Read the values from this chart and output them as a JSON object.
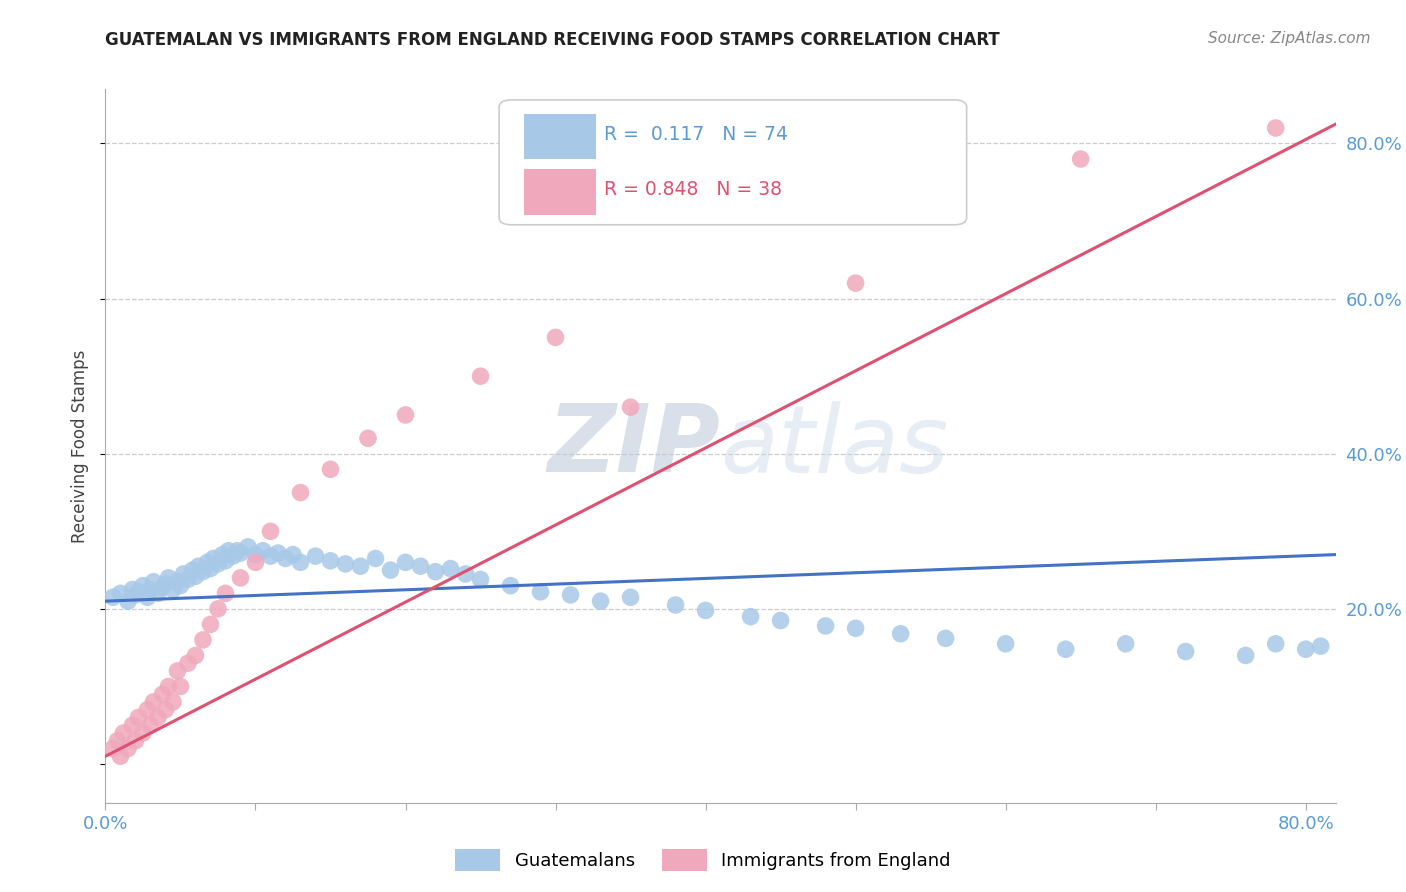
{
  "title": "GUATEMALAN VS IMMIGRANTS FROM ENGLAND RECEIVING FOOD STAMPS CORRELATION CHART",
  "source_text": "Source: ZipAtlas.com",
  "ylabel": "Receiving Food Stamps",
  "xlim": [
    0.0,
    0.82
  ],
  "ylim": [
    -0.05,
    0.87
  ],
  "xticks": [
    0.0,
    0.1,
    0.2,
    0.3,
    0.4,
    0.5,
    0.6,
    0.7,
    0.8
  ],
  "yticks_right": [
    0.2,
    0.4,
    0.6,
    0.8
  ],
  "ytick_labels_right": [
    "20.0%",
    "40.0%",
    "60.0%",
    "80.0%"
  ],
  "R_blue": 0.117,
  "N_blue": 74,
  "R_pink": 0.848,
  "N_pink": 38,
  "blue_color": "#A8C8E8",
  "pink_color": "#F0A8BC",
  "blue_line_color": "#4472C4",
  "pink_line_color": "#E05070",
  "watermark_color": "#C8D8E8",
  "background_color": "#FFFFFF",
  "grid_color": "#CCCCCC",
  "blue_scatter_x": [
    0.005,
    0.01,
    0.015,
    0.018,
    0.02,
    0.022,
    0.025,
    0.028,
    0.03,
    0.032,
    0.035,
    0.038,
    0.04,
    0.042,
    0.045,
    0.048,
    0.05,
    0.052,
    0.055,
    0.058,
    0.06,
    0.062,
    0.065,
    0.068,
    0.07,
    0.072,
    0.075,
    0.078,
    0.08,
    0.082,
    0.085,
    0.088,
    0.09,
    0.095,
    0.1,
    0.105,
    0.11,
    0.115,
    0.12,
    0.125,
    0.13,
    0.14,
    0.15,
    0.16,
    0.17,
    0.18,
    0.19,
    0.2,
    0.21,
    0.22,
    0.23,
    0.24,
    0.25,
    0.27,
    0.29,
    0.31,
    0.33,
    0.35,
    0.38,
    0.4,
    0.43,
    0.45,
    0.48,
    0.5,
    0.53,
    0.56,
    0.6,
    0.64,
    0.68,
    0.72,
    0.76,
    0.78,
    0.8,
    0.81
  ],
  "blue_scatter_y": [
    0.215,
    0.22,
    0.21,
    0.225,
    0.218,
    0.222,
    0.23,
    0.215,
    0.225,
    0.235,
    0.22,
    0.228,
    0.232,
    0.24,
    0.225,
    0.235,
    0.23,
    0.245,
    0.238,
    0.25,
    0.242,
    0.255,
    0.248,
    0.26,
    0.252,
    0.265,
    0.258,
    0.27,
    0.262,
    0.275,
    0.268,
    0.275,
    0.272,
    0.28,
    0.27,
    0.275,
    0.268,
    0.272,
    0.265,
    0.27,
    0.26,
    0.268,
    0.262,
    0.258,
    0.255,
    0.265,
    0.25,
    0.26,
    0.255,
    0.248,
    0.252,
    0.245,
    0.238,
    0.23,
    0.222,
    0.218,
    0.21,
    0.215,
    0.205,
    0.198,
    0.19,
    0.185,
    0.178,
    0.175,
    0.168,
    0.162,
    0.155,
    0.148,
    0.155,
    0.145,
    0.14,
    0.155,
    0.148,
    0.152
  ],
  "pink_scatter_x": [
    0.005,
    0.008,
    0.01,
    0.012,
    0.015,
    0.018,
    0.02,
    0.022,
    0.025,
    0.028,
    0.03,
    0.032,
    0.035,
    0.038,
    0.04,
    0.042,
    0.045,
    0.048,
    0.05,
    0.055,
    0.06,
    0.065,
    0.07,
    0.075,
    0.08,
    0.09,
    0.1,
    0.11,
    0.13,
    0.15,
    0.175,
    0.2,
    0.25,
    0.3,
    0.35,
    0.5,
    0.65,
    0.78
  ],
  "pink_scatter_y": [
    0.02,
    0.03,
    0.01,
    0.04,
    0.02,
    0.05,
    0.03,
    0.06,
    0.04,
    0.07,
    0.05,
    0.08,
    0.06,
    0.09,
    0.07,
    0.1,
    0.08,
    0.12,
    0.1,
    0.13,
    0.14,
    0.16,
    0.18,
    0.2,
    0.22,
    0.24,
    0.26,
    0.3,
    0.35,
    0.38,
    0.42,
    0.45,
    0.5,
    0.55,
    0.46,
    0.62,
    0.78,
    0.82
  ],
  "blue_trendline_x": [
    0.0,
    0.82
  ],
  "blue_trendline_y": [
    0.21,
    0.27
  ],
  "pink_trendline_x": [
    0.0,
    0.82
  ],
  "pink_trendline_y": [
    0.01,
    0.825
  ]
}
